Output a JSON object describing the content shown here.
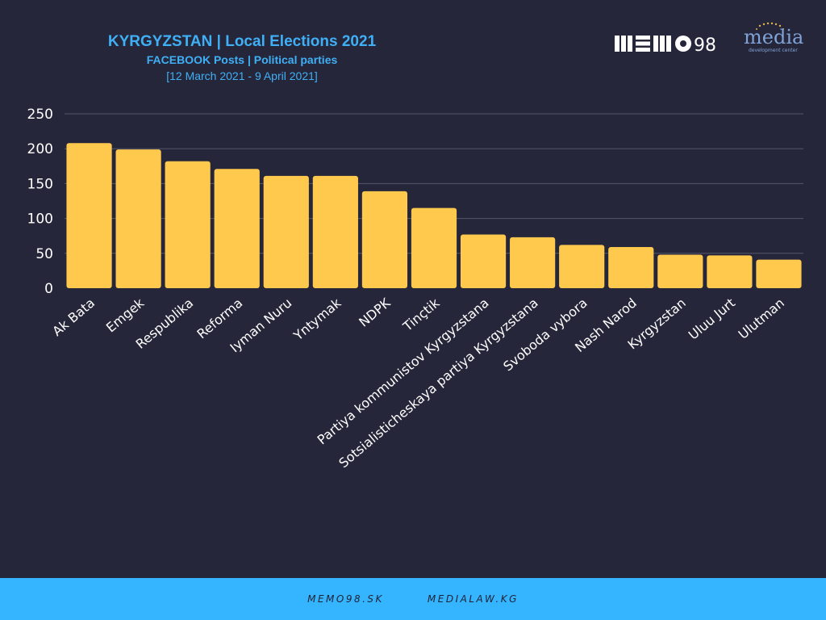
{
  "header": {
    "title": "KYRGYZSTAN | Local Elections 2021",
    "subtitle": "FACEBOOK Posts | Political parties",
    "date_range": "[12 March 2021 - 9 April 2021]"
  },
  "logos": {
    "memo": "MEMO98",
    "mdc_main": "media",
    "mdc_sub": "development center"
  },
  "footer": {
    "link1": "MEMO98.SK",
    "link2": "MEDIALAW.KG"
  },
  "colors": {
    "background": "#26263b",
    "bar": "#ffc94d",
    "accent": "#35b5ff",
    "title": "#3fb0f5"
  },
  "chart_data": {
    "type": "bar",
    "categories": [
      "Ak Bata",
      "Emgek",
      "Respublika",
      "Reforma",
      "Iyman Nuru",
      "Yntymak",
      "NDPK",
      "Tinçtik",
      "Partiya kommunistov Kyrgyzstana",
      "Sotsialisticheskaya partiya Kyrgyzstana",
      "Svoboda vybora",
      "Nash Narod",
      "Kyrgyzstan",
      "Uluu Jurt",
      "Ulutman"
    ],
    "values": [
      208,
      199,
      182,
      171,
      161,
      161,
      139,
      115,
      77,
      73,
      62,
      59,
      48,
      47,
      41
    ],
    "yticks": [
      0,
      50,
      100,
      150,
      200,
      250
    ],
    "ylim": [
      0,
      250
    ],
    "grid": true
  }
}
